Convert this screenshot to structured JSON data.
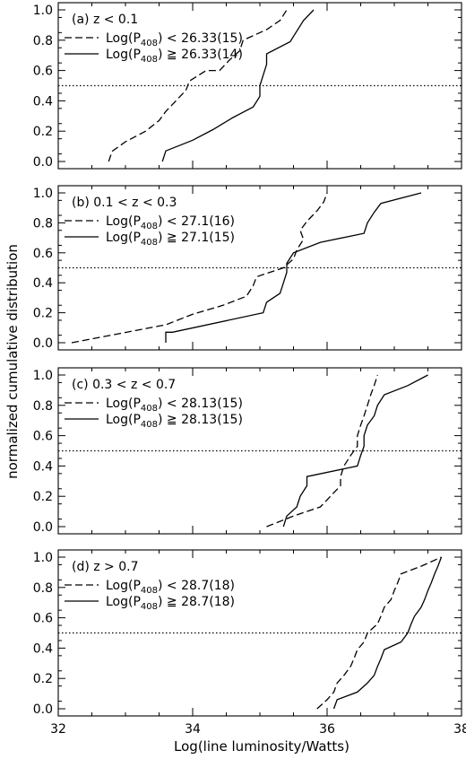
{
  "chart_data": {
    "type": "line",
    "xlabel": "Log(line luminosity/Watts)",
    "ylabel": "normalized cumulative distribution",
    "xlim": [
      32,
      38
    ],
    "ylim": [
      0,
      1
    ],
    "xticks": [
      "32",
      "34",
      "36",
      "38"
    ],
    "yticks": [
      "0.0",
      "0.2",
      "0.4",
      "0.6",
      "0.8",
      "1.0"
    ],
    "reference_line": {
      "y": 0.5,
      "style": "dotted"
    },
    "legend_placement": "top-left",
    "panels": [
      {
        "label": "(a) z < 0.1",
        "series": [
          {
            "style": "dashed",
            "legend": {
              "prefix": "Log(P",
              "sub": "408",
              "suffix": ") < 26.33(15)"
            },
            "points": [
              [
                32.75,
                0.0
              ],
              [
                32.8,
                0.067
              ],
              [
                33.0,
                0.13
              ],
              [
                33.3,
                0.2
              ],
              [
                33.5,
                0.27
              ],
              [
                33.6,
                0.33
              ],
              [
                33.75,
                0.4
              ],
              [
                33.9,
                0.47
              ],
              [
                33.95,
                0.53
              ],
              [
                34.2,
                0.6
              ],
              [
                34.4,
                0.6
              ],
              [
                34.55,
                0.67
              ],
              [
                34.7,
                0.73
              ],
              [
                34.75,
                0.8
              ],
              [
                35.1,
                0.87
              ],
              [
                35.3,
                0.93
              ],
              [
                35.4,
                1.0
              ]
            ]
          },
          {
            "style": "solid",
            "legend": {
              "prefix": "Log(P",
              "sub": "408",
              "suffix": ") ≧ 26.33(14)"
            },
            "points": [
              [
                33.55,
                0.0
              ],
              [
                33.6,
                0.07
              ],
              [
                34.0,
                0.14
              ],
              [
                34.3,
                0.21
              ],
              [
                34.6,
                0.29
              ],
              [
                34.9,
                0.36
              ],
              [
                35.0,
                0.43
              ],
              [
                35.0,
                0.5
              ],
              [
                35.05,
                0.57
              ],
              [
                35.1,
                0.64
              ],
              [
                35.1,
                0.71
              ],
              [
                35.45,
                0.79
              ],
              [
                35.55,
                0.86
              ],
              [
                35.65,
                0.93
              ],
              [
                35.8,
                1.0
              ]
            ]
          }
        ]
      },
      {
        "label": "(b) 0.1 < z < 0.3",
        "series": [
          {
            "style": "dashed",
            "legend": {
              "prefix": "Log(P",
              "sub": "408",
              "suffix": ") < 27.1(16)"
            },
            "points": [
              [
                32.2,
                0.0
              ],
              [
                32.9,
                0.06
              ],
              [
                33.6,
                0.12
              ],
              [
                34.0,
                0.19
              ],
              [
                34.45,
                0.25
              ],
              [
                34.8,
                0.31
              ],
              [
                34.9,
                0.38
              ],
              [
                34.95,
                0.44
              ],
              [
                35.35,
                0.5
              ],
              [
                35.5,
                0.56
              ],
              [
                35.55,
                0.62
              ],
              [
                35.65,
                0.69
              ],
              [
                35.6,
                0.75
              ],
              [
                35.7,
                0.81
              ],
              [
                35.85,
                0.88
              ],
              [
                35.95,
                0.94
              ],
              [
                36.0,
                1.0
              ]
            ]
          },
          {
            "style": "solid",
            "legend": {
              "prefix": "Log(P",
              "sub": "408",
              "suffix": ") ≧ 27.1(15)"
            },
            "points": [
              [
                33.6,
                0.0
              ],
              [
                33.6,
                0.07
              ],
              [
                33.7,
                0.07
              ],
              [
                35.05,
                0.2
              ],
              [
                35.1,
                0.27
              ],
              [
                35.3,
                0.33
              ],
              [
                35.35,
                0.4
              ],
              [
                35.4,
                0.47
              ],
              [
                35.4,
                0.53
              ],
              [
                35.5,
                0.6
              ],
              [
                35.9,
                0.67
              ],
              [
                36.55,
                0.73
              ],
              [
                36.6,
                0.8
              ],
              [
                36.7,
                0.87
              ],
              [
                36.8,
                0.93
              ],
              [
                37.4,
                1.0
              ]
            ]
          }
        ]
      },
      {
        "label": "(c) 0.3 < z < 0.7",
        "series": [
          {
            "style": "dashed",
            "legend": {
              "prefix": "Log(P",
              "sub": "408",
              "suffix": ") < 28.13(15)"
            },
            "points": [
              [
                35.1,
                0.0
              ],
              [
                35.5,
                0.07
              ],
              [
                35.9,
                0.13
              ],
              [
                36.05,
                0.2
              ],
              [
                36.2,
                0.27
              ],
              [
                36.2,
                0.33
              ],
              [
                36.25,
                0.4
              ],
              [
                36.35,
                0.47
              ],
              [
                36.45,
                0.53
              ],
              [
                36.45,
                0.6
              ],
              [
                36.5,
                0.67
              ],
              [
                36.55,
                0.73
              ],
              [
                36.6,
                0.8
              ],
              [
                36.65,
                0.87
              ],
              [
                36.7,
                0.93
              ],
              [
                36.75,
                1.0
              ]
            ]
          },
          {
            "style": "solid",
            "legend": {
              "prefix": "Log(P",
              "sub": "408",
              "suffix": ") ≧ 28.13(15)"
            },
            "points": [
              [
                35.35,
                0.0
              ],
              [
                35.4,
                0.07
              ],
              [
                35.55,
                0.13
              ],
              [
                35.6,
                0.2
              ],
              [
                35.7,
                0.27
              ],
              [
                35.7,
                0.33
              ],
              [
                36.45,
                0.4
              ],
              [
                36.5,
                0.47
              ],
              [
                36.55,
                0.53
              ],
              [
                36.55,
                0.6
              ],
              [
                36.6,
                0.67
              ],
              [
                36.7,
                0.73
              ],
              [
                36.75,
                0.8
              ],
              [
                36.85,
                0.87
              ],
              [
                37.2,
                0.93
              ],
              [
                37.5,
                1.0
              ]
            ]
          }
        ]
      },
      {
        "label": "(d) z > 0.7",
        "series": [
          {
            "style": "dashed",
            "legend": {
              "prefix": "Log(P",
              "sub": "408",
              "suffix": ") < 28.7(18)"
            },
            "points": [
              [
                35.85,
                0.0
              ],
              [
                36.0,
                0.06
              ],
              [
                36.1,
                0.11
              ],
              [
                36.15,
                0.17
              ],
              [
                36.25,
                0.22
              ],
              [
                36.35,
                0.28
              ],
              [
                36.4,
                0.33
              ],
              [
                36.45,
                0.39
              ],
              [
                36.55,
                0.44
              ],
              [
                36.6,
                0.5
              ],
              [
                36.75,
                0.56
              ],
              [
                36.8,
                0.61
              ],
              [
                36.85,
                0.67
              ],
              [
                36.95,
                0.72
              ],
              [
                37.0,
                0.78
              ],
              [
                37.05,
                0.83
              ],
              [
                37.1,
                0.89
              ],
              [
                37.4,
                0.94
              ],
              [
                37.7,
                1.0
              ]
            ]
          },
          {
            "style": "solid",
            "legend": {
              "prefix": "Log(P",
              "sub": "408",
              "suffix": ") ≧ 28.7(18)"
            },
            "points": [
              [
                36.1,
                0.0
              ],
              [
                36.15,
                0.06
              ],
              [
                36.45,
                0.11
              ],
              [
                36.6,
                0.17
              ],
              [
                36.7,
                0.22
              ],
              [
                36.75,
                0.28
              ],
              [
                36.8,
                0.33
              ],
              [
                36.85,
                0.39
              ],
              [
                37.1,
                0.44
              ],
              [
                37.2,
                0.5
              ],
              [
                37.25,
                0.56
              ],
              [
                37.3,
                0.61
              ],
              [
                37.4,
                0.67
              ],
              [
                37.45,
                0.72
              ],
              [
                37.5,
                0.78
              ],
              [
                37.55,
                0.83
              ],
              [
                37.6,
                0.89
              ],
              [
                37.65,
                0.94
              ],
              [
                37.7,
                1.0
              ]
            ]
          }
        ]
      }
    ]
  }
}
